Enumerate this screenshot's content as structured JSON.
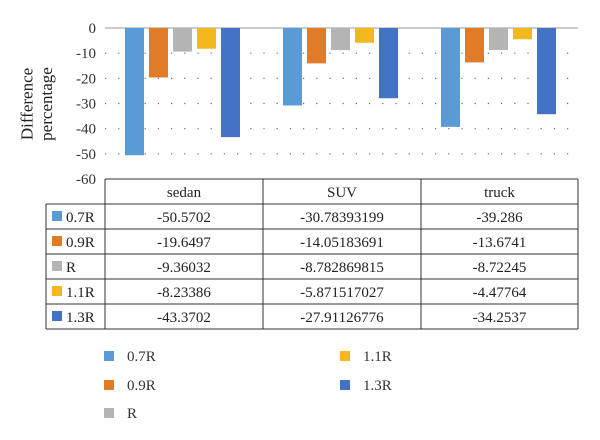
{
  "chart_data": {
    "type": "bar",
    "title": "",
    "xlabel": "",
    "ylabel": "Difference percentage",
    "ylabel_lines": [
      "Difference",
      "percentage"
    ],
    "ylim": [
      -60,
      0
    ],
    "yticks": [
      0,
      -10,
      -20,
      -30,
      -40,
      -50,
      -60
    ],
    "grid": "dotted horizontal",
    "categories": [
      "sedan",
      "SUV",
      "truck"
    ],
    "series": [
      {
        "name": "0.7R",
        "color": "#5b9bd5",
        "values": [
          -50.5702,
          -30.78393199,
          -39.286
        ],
        "labels": [
          "-50.5702",
          "-30.78393199",
          "-39.286"
        ]
      },
      {
        "name": "0.9R",
        "color": "#e07b28",
        "values": [
          -19.6497,
          -14.05183691,
          -13.6741
        ],
        "labels": [
          "-19.6497",
          "-14.05183691",
          "-13.6741"
        ]
      },
      {
        "name": "R",
        "color": "#b4b4b4",
        "values": [
          -9.36032,
          -8.782869815,
          -8.72245
        ],
        "labels": [
          "-9.36032",
          "-8.782869815",
          "-8.72245"
        ]
      },
      {
        "name": "1.1R",
        "color": "#f2b81e",
        "values": [
          -8.23386,
          -5.871517027,
          -4.47764
        ],
        "labels": [
          "-8.23386",
          "-5.871517027",
          "-4.47764"
        ]
      },
      {
        "name": "1.3R",
        "color": "#4472c4",
        "values": [
          -43.3702,
          -27.91126776,
          -34.2537
        ],
        "labels": [
          "-43.3702",
          "-27.91126776",
          "-34.2537"
        ]
      }
    ],
    "data_table": true,
    "legend_placement": "bottom"
  }
}
